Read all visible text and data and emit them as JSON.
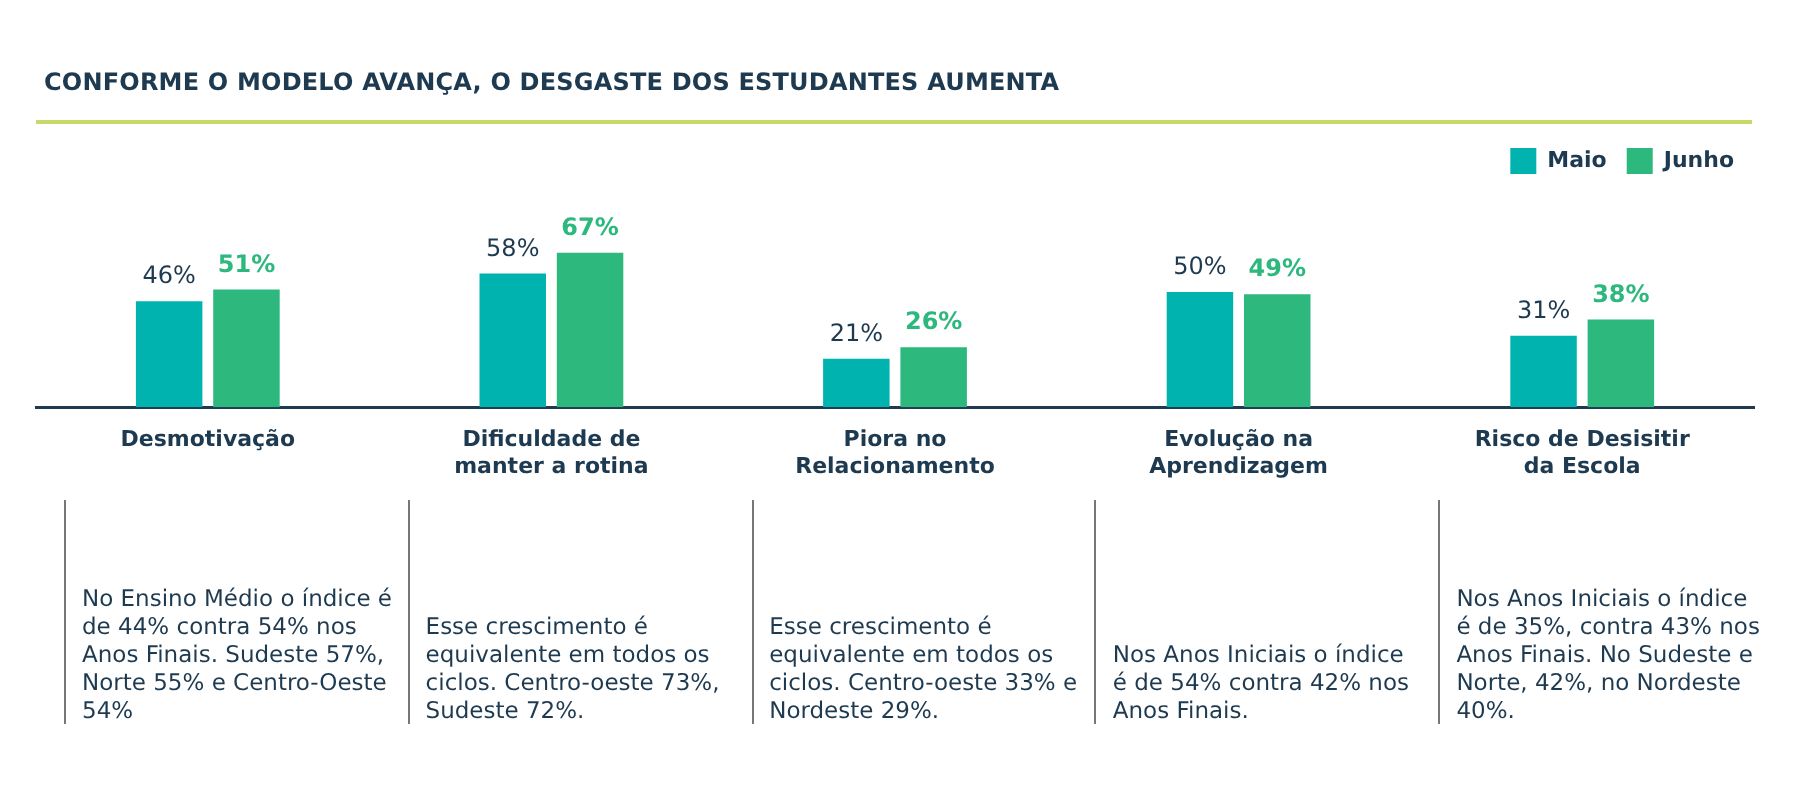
{
  "chart_data": {
    "type": "bar",
    "title": "CONFORME O MODELO AVANÇA, O DESGASTE DOS ESTUDANTES AUMENTA",
    "categories": [
      "Desmotivação",
      "Dificuldade de manter a rotina",
      "Piora no Relacionamento",
      "Evolução na Aprendizagem",
      "Risco de Desisitir da Escola"
    ],
    "series": [
      {
        "name": "Maio",
        "color": "#00b3ae",
        "values": [
          46,
          58,
          21,
          50,
          31
        ],
        "value_labels": [
          "46%",
          "58%",
          "21%",
          "50%",
          "31%"
        ]
      },
      {
        "name": "Junho",
        "color": "#2db87d",
        "values": [
          51,
          67,
          26,
          49,
          38
        ],
        "value_labels": [
          "51%",
          "67%",
          "26%",
          "49%",
          "38%"
        ]
      }
    ],
    "legend": "top right",
    "grid": false,
    "annotations": [
      "No Ensino Médio o índice é de 44% contra 54% nos Anos Finais. Sudeste 57%, Norte 55% e Centro-Oeste 54%",
      "Esse crescimento é equivalente em todos os ciclos. Centro-oeste 73%, Sudeste 72%.",
      "Esse crescimento é equivalente em todos os ciclos. Centro-oeste 33% e Nordeste 29%.",
      "Nos Anos Iniciais o índice é de 54% contra 42% nos Anos Finais.",
      "Nos Anos Iniciais o índice é de 35%, contra 43% nos Anos Finais. No Sudeste e Norte, 42%, no Nordeste 40%."
    ]
  }
}
